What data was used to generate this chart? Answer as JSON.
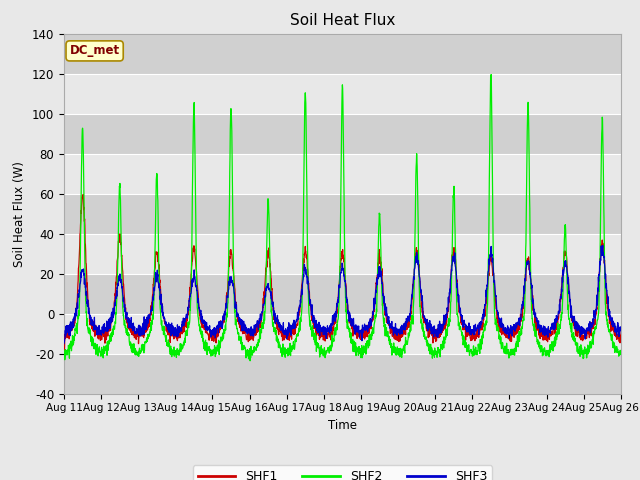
{
  "title": "Soil Heat Flux",
  "ylabel": "Soil Heat Flux (W)",
  "xlabel": "Time",
  "ylim": [
    -40,
    140
  ],
  "annotation_text": "DC_met",
  "legend_labels": [
    "SHF1",
    "SHF2",
    "SHF3"
  ],
  "shf1_color": "#cc0000",
  "shf2_color": "#00ee00",
  "shf3_color": "#0000cc",
  "fig_bg_color": "#e8e8e8",
  "plot_bg_color": "#f0f0f0",
  "band_light_color": "#e8e8e8",
  "band_dark_color": "#d0d0d0",
  "xtick_labels": [
    "Aug 11",
    "Aug 12",
    "Aug 13",
    "Aug 14",
    "Aug 15",
    "Aug 16",
    "Aug 17",
    "Aug 18",
    "Aug 19",
    "Aug 20",
    "Aug 21",
    "Aug 22",
    "Aug 23",
    "Aug 24",
    "Aug 25",
    "Aug 26"
  ],
  "ytick_values": [
    -40,
    -20,
    0,
    20,
    40,
    60,
    80,
    100,
    120,
    140
  ],
  "num_days": 15,
  "pts_per_day": 144,
  "shf2_peaks": [
    94,
    64,
    71,
    105,
    104,
    57,
    110,
    114,
    49,
    78,
    63,
    120,
    106,
    43,
    97
  ],
  "shf1_peaks": [
    58,
    38,
    30,
    32,
    30,
    30,
    31,
    30,
    28,
    32,
    30,
    28,
    28,
    30,
    35
  ],
  "shf3_peaks": [
    22,
    18,
    19,
    18,
    17,
    14,
    22,
    23,
    22,
    28,
    28,
    30,
    26,
    25,
    32
  ],
  "shf2_night": -20,
  "shf1_night": -12,
  "shf3_night": -10
}
